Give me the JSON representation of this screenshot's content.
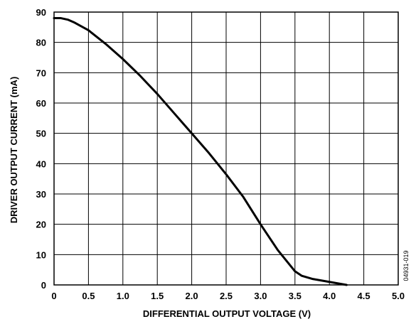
{
  "chart_data": {
    "type": "line",
    "title": "",
    "xlabel": "DIFFERENTIAL OUTPUT VOLTAGE (V)",
    "ylabel": "DRIVER OUTPUT CURRENT (mA)",
    "xlim": [
      0,
      5.0
    ],
    "ylim": [
      0,
      90
    ],
    "x_ticks": [
      "0",
      "0.5",
      "1.0",
      "1.5",
      "2.0",
      "2.5",
      "3.0",
      "3.5",
      "4.0",
      "4.5",
      "5.0"
    ],
    "y_ticks": [
      "0",
      "10",
      "20",
      "30",
      "40",
      "50",
      "60",
      "70",
      "80",
      "90"
    ],
    "grid": true,
    "figure_code": "04931-019",
    "series": [
      {
        "x": [
          0.0,
          0.1,
          0.2,
          0.3,
          0.5,
          0.75,
          1.0,
          1.25,
          1.5,
          1.75,
          2.0,
          2.25,
          2.5,
          2.75,
          3.0,
          3.25,
          3.5,
          3.6,
          3.75,
          4.0,
          4.25
        ],
        "y": [
          88,
          88,
          87.5,
          86.5,
          84,
          79.5,
          74.5,
          69,
          63,
          56.5,
          50,
          43.5,
          36.5,
          29,
          20,
          11.5,
          4.5,
          3,
          2,
          1,
          0
        ]
      }
    ]
  }
}
